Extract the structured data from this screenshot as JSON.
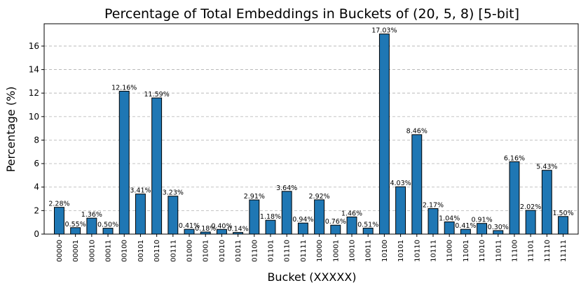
{
  "chart_data": {
    "type": "bar",
    "title": "Percentage of Total Embeddings in Buckets of (20, 5, 8) [5-bit]",
    "xlabel": "Bucket (XXXXX)",
    "ylabel": "Percentage (%)",
    "ylim": [
      0,
      17.9
    ],
    "yticks": [
      0,
      2,
      4,
      6,
      8,
      10,
      12,
      14,
      16
    ],
    "grid": "y-dashed",
    "bar_color": "#1f77b4",
    "categories": [
      "00000",
      "00001",
      "00010",
      "00011",
      "00100",
      "00101",
      "00110",
      "00111",
      "01000",
      "01001",
      "01010",
      "01011",
      "01100",
      "01101",
      "01110",
      "01111",
      "10000",
      "10001",
      "10010",
      "10011",
      "10100",
      "10101",
      "10110",
      "10111",
      "11000",
      "11001",
      "11010",
      "11011",
      "11100",
      "11101",
      "11110",
      "11111"
    ],
    "values": [
      2.28,
      0.55,
      1.36,
      0.5,
      12.16,
      3.41,
      11.59,
      3.23,
      0.41,
      0.18,
      0.4,
      0.14,
      2.91,
      1.18,
      3.64,
      0.94,
      2.92,
      0.76,
      1.46,
      0.51,
      17.03,
      4.03,
      8.46,
      2.17,
      1.04,
      0.41,
      0.91,
      0.3,
      6.16,
      2.02,
      5.43,
      1.5
    ],
    "labels": [
      "2.28%",
      "0.55%",
      "1.36%",
      "0.50%",
      "12.16%",
      "3.41%",
      "11.59%",
      "3.23%",
      "0.41%",
      "0.18%",
      "0.40%",
      "0.14%",
      "2.91%",
      "1.18%",
      "3.64%",
      "0.94%",
      "2.92%",
      "0.76%",
      "1.46%",
      "0.51%",
      "17.03%",
      "4.03%",
      "8.46%",
      "2.17%",
      "1.04%",
      "0.41%",
      "0.91%",
      "0.30%",
      "6.16%",
      "2.02%",
      "5.43%",
      "1.50%"
    ]
  }
}
